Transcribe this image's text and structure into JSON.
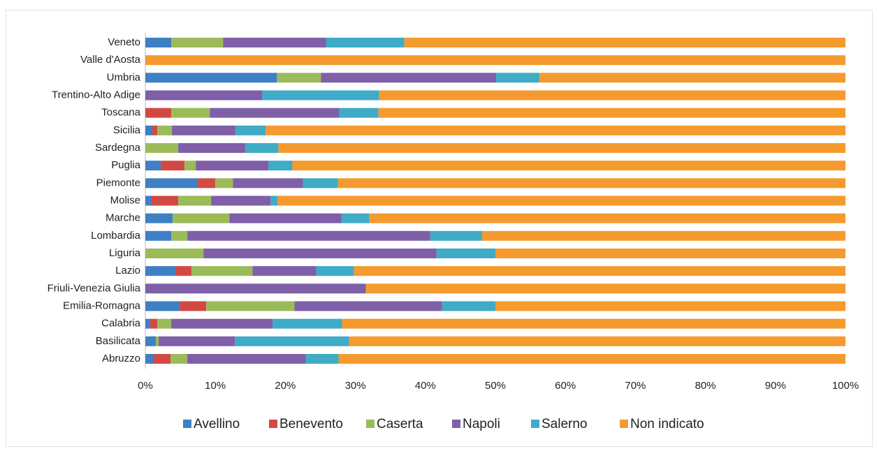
{
  "chart_data": {
    "type": "stacked_bar_horizontal",
    "categories": [
      "Abruzzo",
      "Basilicata",
      "Calabria",
      "Emilia-Romagna",
      "Friuli-Venezia Giulia",
      "Lazio",
      "Liguria",
      "Lombardia",
      "Marche",
      "Molise",
      "Piemonte",
      "Puglia",
      "Sardegna",
      "Sicilia",
      "Toscana",
      "Trentino-Alto Adige",
      "Umbria",
      "Valle d'Aosta",
      "Veneto"
    ],
    "series": [
      {
        "name": "Avellino",
        "color": "#3f7fc3",
        "values": [
          1.1,
          1.5,
          0.7,
          4.9,
          0,
          4.3,
          0,
          3.7,
          3.9,
          0.9,
          7.5,
          2.2,
          0,
          1.0,
          0,
          0,
          18.8,
          0,
          3.7
        ]
      },
      {
        "name": "Benevento",
        "color": "#d04a43",
        "values": [
          2.5,
          0,
          1.0,
          3.8,
          0,
          2.3,
          0,
          0,
          0,
          3.8,
          2.5,
          3.4,
          0,
          0.7,
          3.7,
          0,
          0,
          0,
          0
        ]
      },
      {
        "name": "Caserta",
        "color": "#9bbb59",
        "values": [
          2.4,
          0.4,
          2.0,
          12.6,
          0,
          8.7,
          8.3,
          2.3,
          8.1,
          4.7,
          2.5,
          1.6,
          4.7,
          2.1,
          5.5,
          0,
          6.3,
          0,
          7.4
        ]
      },
      {
        "name": "Napoli",
        "color": "#7f5fa8",
        "values": [
          16.9,
          10.9,
          14.5,
          21.1,
          31.5,
          9.1,
          33.3,
          34.7,
          16.0,
          8.5,
          10.0,
          10.4,
          9.6,
          9.1,
          18.5,
          16.7,
          25.0,
          0,
          14.7
        ]
      },
      {
        "name": "Salerno",
        "color": "#3fabc6",
        "values": [
          4.7,
          16.3,
          9.9,
          7.6,
          0,
          5.4,
          8.4,
          7.4,
          4.0,
          1.0,
          5.0,
          3.4,
          4.7,
          4.3,
          5.6,
          16.7,
          6.2,
          0,
          11.2
        ]
      },
      {
        "name": "Non indicato",
        "color": "#f59a2e",
        "values": [
          72.4,
          70.9,
          71.9,
          50.0,
          68.5,
          70.2,
          50.0,
          51.9,
          68.0,
          81.1,
          72.5,
          79.0,
          81.0,
          82.8,
          66.7,
          66.6,
          43.7,
          100,
          63.0
        ]
      }
    ],
    "xlim": [
      0,
      100
    ],
    "xticks": [
      {
        "value": 0,
        "label": "0%"
      },
      {
        "value": 10,
        "label": "10%"
      },
      {
        "value": 20,
        "label": "20%"
      },
      {
        "value": 30,
        "label": "30%"
      },
      {
        "value": 40,
        "label": "40%"
      },
      {
        "value": 50,
        "label": "50%"
      },
      {
        "value": 60,
        "label": "60%"
      },
      {
        "value": 70,
        "label": "70%"
      },
      {
        "value": 80,
        "label": "80%"
      },
      {
        "value": 90,
        "label": "90%"
      },
      {
        "value": 100,
        "label": "100%"
      }
    ],
    "legend": "bottom"
  }
}
